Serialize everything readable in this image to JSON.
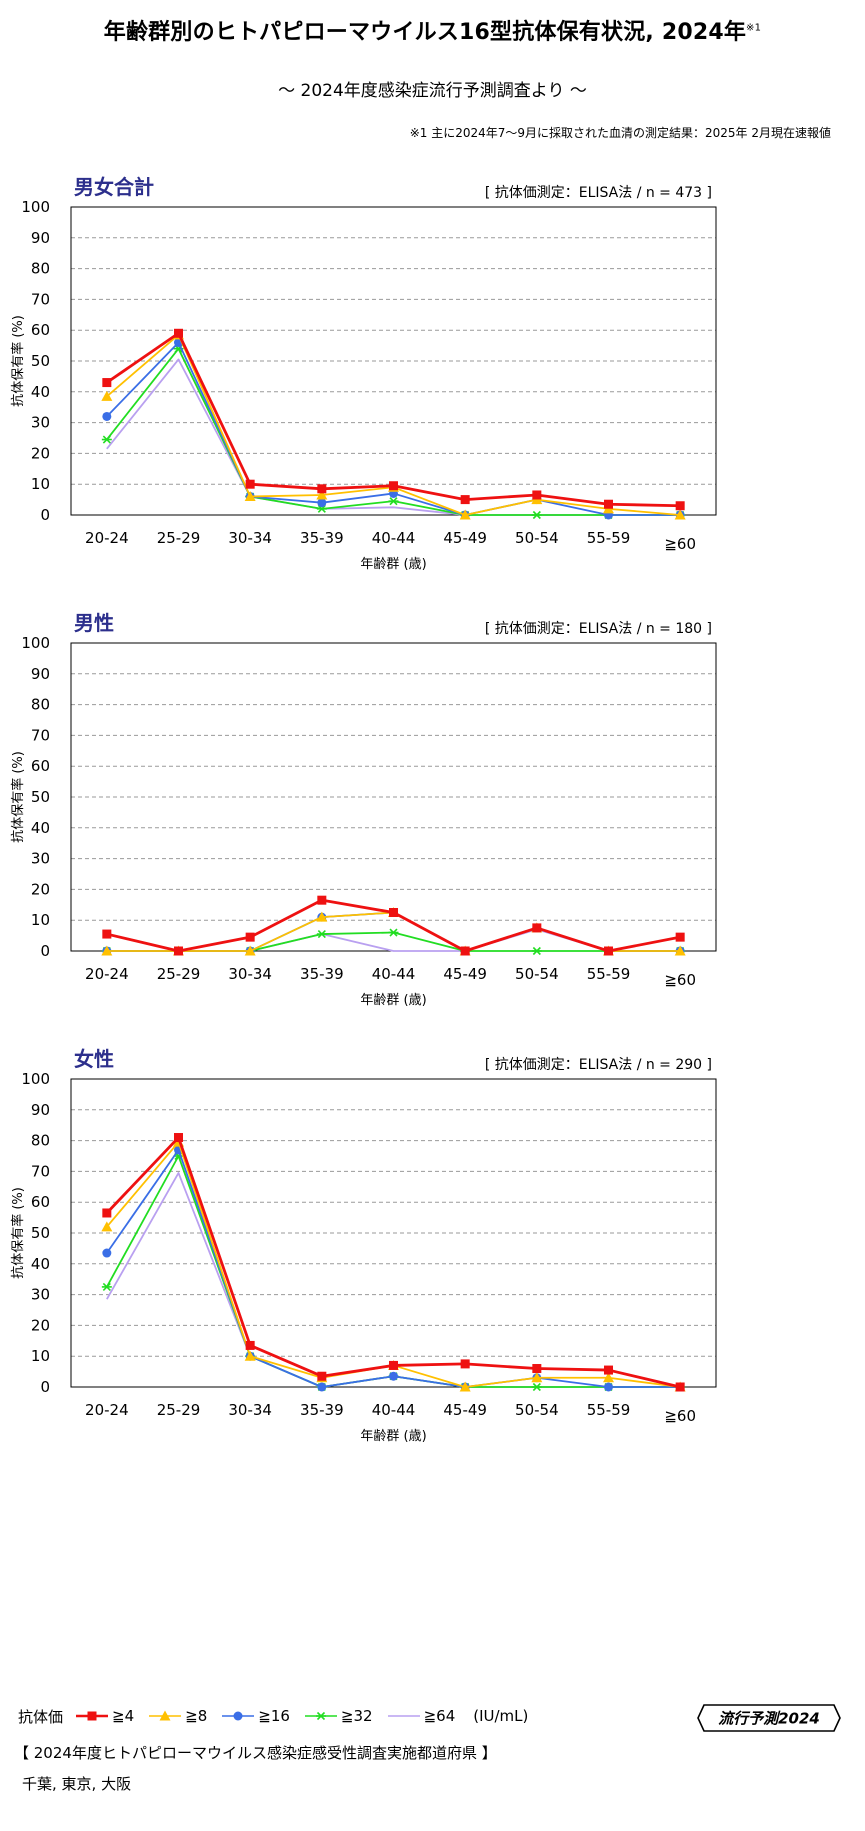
{
  "header": {
    "title": "年齢群別のヒトパピローマウイルス16型抗体保有状況, 2024年",
    "title_sup": "※1",
    "subtitle": "～ 2024年度感染症流行予測調査より ～",
    "note": "※1  主に2024年7～9月に採取された血清の測定結果：2025年 2月現在速報値"
  },
  "legend": {
    "title": "抗体価",
    "unit": "(IU/mL)",
    "items": [
      {
        "label": "≧4",
        "color": "#ee1111",
        "marker": "square"
      },
      {
        "label": "≧8",
        "color": "#ffc000",
        "marker": "triangle"
      },
      {
        "label": "≧16",
        "color": "#3a6ee6",
        "marker": "circle"
      },
      {
        "label": "≧32",
        "color": "#22dd22",
        "marker": "star"
      },
      {
        "label": "≧64",
        "color": "#b9a0f0",
        "marker": "none"
      }
    ]
  },
  "logo": {
    "text": "流行予測2024"
  },
  "footer": {
    "line1": "【 2024年度ヒトパピローマウイルス感染症感受性調査実施都道府県 】",
    "line2": "千葉, 東京, 大阪"
  },
  "chart_data": [
    {
      "type": "line",
      "title": "男女合計",
      "method": "[ 抗体価測定：ELISA法  / n = 473 ]",
      "xlabel": "年齢群 (歳)",
      "ylabel": "抗体保有率 (%)",
      "ylim": [
        0,
        100
      ],
      "yticks": [
        0,
        10,
        20,
        30,
        40,
        50,
        60,
        70,
        80,
        90,
        100
      ],
      "grid": true,
      "categories": [
        "20-24",
        "25-29",
        "30-34",
        "35-39",
        "40-44",
        "45-49",
        "50-54",
        "55-59",
        "≧60"
      ],
      "series": [
        {
          "name": "≧4",
          "values": [
            43,
            59,
            10,
            8.5,
            9.5,
            5,
            6.5,
            3.5,
            3
          ]
        },
        {
          "name": "≧8",
          "values": [
            38.5,
            58.5,
            6,
            6.5,
            9,
            0,
            5,
            2,
            0
          ]
        },
        {
          "name": "≧16",
          "values": [
            32,
            56,
            6,
            4,
            7,
            0,
            5,
            0,
            0
          ]
        },
        {
          "name": "≧32",
          "values": [
            24.5,
            54,
            6,
            2,
            4.5,
            0,
            0,
            0,
            0
          ]
        },
        {
          "name": "≧64",
          "values": [
            21.5,
            50.5,
            6,
            2,
            2.5,
            0,
            0,
            0,
            0
          ]
        }
      ]
    },
    {
      "type": "line",
      "title": "男性",
      "method": "[ 抗体価測定：ELISA法  / n = 180 ]",
      "xlabel": "年齢群 (歳)",
      "ylabel": "抗体保有率 (%)",
      "ylim": [
        0,
        100
      ],
      "yticks": [
        0,
        10,
        20,
        30,
        40,
        50,
        60,
        70,
        80,
        90,
        100
      ],
      "grid": true,
      "categories": [
        "20-24",
        "25-29",
        "30-34",
        "35-39",
        "40-44",
        "45-49",
        "50-54",
        "55-59",
        "≧60"
      ],
      "series": [
        {
          "name": "≧4",
          "values": [
            5.5,
            0,
            4.5,
            16.5,
            12.5,
            0,
            7.5,
            0,
            4.5
          ]
        },
        {
          "name": "≧8",
          "values": [
            0,
            0,
            0,
            11,
            12.5,
            0,
            7.5,
            0,
            0
          ]
        },
        {
          "name": "≧16",
          "values": [
            0,
            0,
            0,
            11,
            12.5,
            0,
            7.5,
            0,
            0
          ]
        },
        {
          "name": "≧32",
          "values": [
            0,
            0,
            0,
            5.5,
            6,
            0,
            0,
            0,
            0
          ]
        },
        {
          "name": "≧64",
          "values": [
            0,
            0,
            0,
            5.5,
            0,
            0,
            7,
            0,
            0
          ]
        }
      ]
    },
    {
      "type": "line",
      "title": "女性",
      "method": "[ 抗体価測定：ELISA法  / n = 290 ]",
      "xlabel": "年齢群 (歳)",
      "ylabel": "抗体保有率 (%)",
      "ylim": [
        0,
        100
      ],
      "yticks": [
        0,
        10,
        20,
        30,
        40,
        50,
        60,
        70,
        80,
        90,
        100
      ],
      "grid": true,
      "categories": [
        "20-24",
        "25-29",
        "30-34",
        "35-39",
        "40-44",
        "45-49",
        "50-54",
        "55-59",
        "≧60"
      ],
      "series": [
        {
          "name": "≧4",
          "values": [
            56.5,
            81,
            13.5,
            3.5,
            7,
            7.5,
            6,
            5.5,
            0
          ]
        },
        {
          "name": "≧8",
          "values": [
            52,
            79.5,
            10,
            3,
            7,
            0,
            3,
            3,
            0
          ]
        },
        {
          "name": "≧16",
          "values": [
            43.5,
            77,
            10,
            0,
            3.5,
            0,
            3,
            0,
            0
          ]
        },
        {
          "name": "≧32",
          "values": [
            32.5,
            75,
            10,
            0,
            3.5,
            0,
            0,
            0,
            0
          ]
        },
        {
          "name": "≧64",
          "values": [
            28.5,
            69.5,
            10,
            0,
            3.5,
            0,
            0,
            0,
            0
          ]
        }
      ]
    }
  ]
}
